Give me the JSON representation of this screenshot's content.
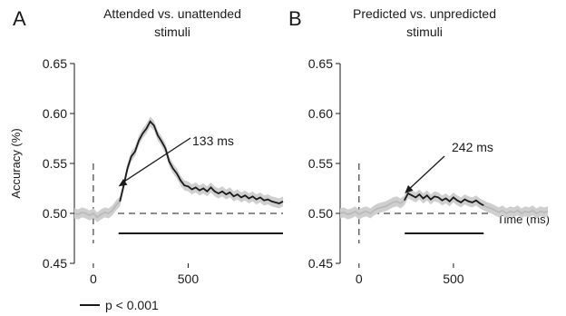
{
  "chart_data": [
    {
      "type": "line",
      "panel_letter": "A",
      "title": "Attended vs. unattended stimuli",
      "title_lines": [
        "Attended vs. unattended",
        "stimuli"
      ],
      "ylabel": "Accuracy (%)",
      "xlabel": "",
      "xlim": [
        -100,
        1000
      ],
      "ylim": [
        0.45,
        0.65
      ],
      "xticks": [
        0,
        500
      ],
      "yticks": [
        0.45,
        0.5,
        0.55,
        0.6,
        0.65
      ],
      "ytick_labels": [
        "0.45",
        "0.50",
        "0.55",
        "0.60",
        "0.65"
      ],
      "chance_level": 0.5,
      "stimulus_onset": 0,
      "series": {
        "x": [
          -100,
          -80,
          -60,
          -40,
          -20,
          0,
          20,
          40,
          60,
          80,
          100,
          120,
          140,
          160,
          180,
          200,
          220,
          240,
          260,
          280,
          300,
          320,
          340,
          360,
          380,
          400,
          420,
          440,
          460,
          480,
          500,
          520,
          540,
          560,
          580,
          600,
          620,
          640,
          660,
          680,
          700,
          720,
          740,
          760,
          780,
          800,
          820,
          840,
          860,
          880,
          900,
          920,
          940,
          960,
          980,
          1000
        ],
        "mean": [
          0.5,
          0.499,
          0.501,
          0.5,
          0.498,
          0.5,
          0.496,
          0.499,
          0.501,
          0.5,
          0.503,
          0.508,
          0.512,
          0.528,
          0.545,
          0.557,
          0.562,
          0.573,
          0.58,
          0.585,
          0.592,
          0.588,
          0.578,
          0.572,
          0.565,
          0.552,
          0.545,
          0.54,
          0.533,
          0.528,
          0.527,
          0.524,
          0.526,
          0.523,
          0.525,
          0.522,
          0.526,
          0.522,
          0.52,
          0.522,
          0.519,
          0.521,
          0.517,
          0.519,
          0.516,
          0.518,
          0.515,
          0.517,
          0.514,
          0.516,
          0.513,
          0.514,
          0.512,
          0.511,
          0.51,
          0.512
        ],
        "sem": 0.005,
        "significant_from": 133
      },
      "significance_bar": {
        "start": 133,
        "end": 1000
      },
      "annotation": {
        "text": "133 ms",
        "x": 133,
        "y": 0.527
      }
    },
    {
      "type": "line",
      "panel_letter": "B",
      "title": "Predicted vs. unpredicted stimuli",
      "title_lines": [
        "Predicted vs. unpredicted",
        "stimuli"
      ],
      "ylabel": "",
      "xlabel": "Time (ms)",
      "xlim": [
        -100,
        1000
      ],
      "ylim": [
        0.45,
        0.65
      ],
      "xticks": [
        0,
        500
      ],
      "yticks": [
        0.45,
        0.5,
        0.55,
        0.6,
        0.65
      ],
      "ytick_labels": [
        "0.45",
        "0.50",
        "0.55",
        "0.60",
        "0.65"
      ],
      "chance_level": 0.5,
      "stimulus_onset": 0,
      "series": {
        "x": [
          -100,
          -80,
          -60,
          -40,
          -20,
          0,
          20,
          40,
          60,
          80,
          100,
          120,
          140,
          160,
          180,
          200,
          220,
          240,
          260,
          280,
          300,
          320,
          340,
          360,
          380,
          400,
          420,
          440,
          460,
          480,
          500,
          520,
          540,
          560,
          580,
          600,
          620,
          640,
          660,
          680,
          700,
          720,
          740,
          760,
          780,
          800,
          820,
          840,
          860,
          880,
          900,
          920,
          940,
          960,
          980,
          1000
        ],
        "mean": [
          0.5,
          0.501,
          0.499,
          0.5,
          0.502,
          0.499,
          0.501,
          0.502,
          0.5,
          0.503,
          0.505,
          0.506,
          0.507,
          0.509,
          0.511,
          0.512,
          0.51,
          0.513,
          0.52,
          0.518,
          0.516,
          0.519,
          0.515,
          0.518,
          0.514,
          0.517,
          0.516,
          0.513,
          0.515,
          0.512,
          0.516,
          0.513,
          0.511,
          0.514,
          0.512,
          0.511,
          0.513,
          0.51,
          0.508,
          0.506,
          0.505,
          0.503,
          0.501,
          0.503,
          0.5,
          0.502,
          0.501,
          0.503,
          0.5,
          0.502,
          0.501,
          0.503,
          0.5,
          0.502,
          0.501,
          0.502
        ],
        "sem": 0.005,
        "significant_from": 242,
        "significant_to": 660
      },
      "significance_bar": {
        "start": 242,
        "end": 660
      },
      "annotation": {
        "text": "242 ms",
        "x": 242,
        "y": 0.52
      }
    }
  ],
  "legend": {
    "label": "p < 0.001"
  }
}
